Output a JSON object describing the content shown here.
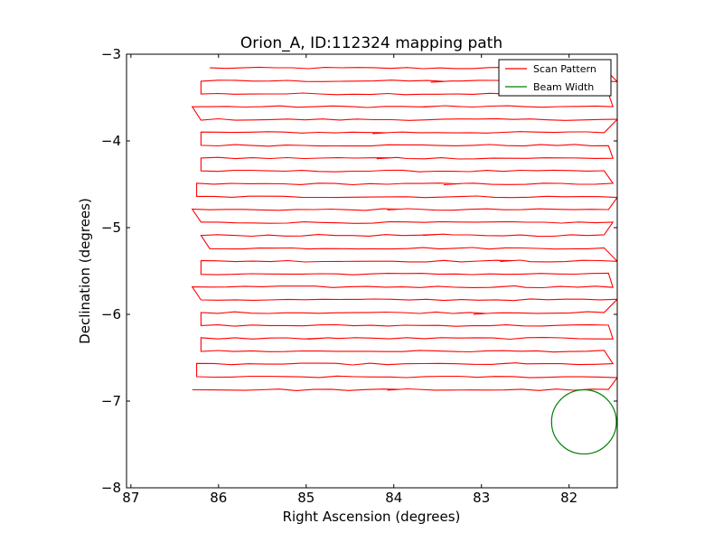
{
  "chart_data": {
    "type": "line",
    "title": "Orion_A, ID:112324 mapping path",
    "xlabel": "Right Ascension (degrees)",
    "ylabel": "Declination (degrees)",
    "xlim": [
      87.05,
      81.45
    ],
    "ylim": [
      -8,
      -3
    ],
    "xticks": [
      87,
      86,
      85,
      84,
      83,
      82
    ],
    "yticks": [
      -3,
      -4,
      -5,
      -6,
      -7,
      -8
    ],
    "xtick_labels": [
      "87",
      "86",
      "85",
      "84",
      "83",
      "82"
    ],
    "ytick_labels": [
      "−3",
      "−4",
      "−5",
      "−6",
      "−7",
      "−8"
    ],
    "grid": false,
    "legend_position": "top-right",
    "series": [
      {
        "name": "Scan Pattern",
        "color": "#ff0000",
        "type": "raster-scan",
        "dec_start": -3.16,
        "dec_step": 0.1484,
        "rows": 26,
        "ra_west_edge": [
          81.6,
          81.45,
          81.55,
          81.5,
          81.45,
          81.6,
          81.55,
          81.5,
          81.6,
          81.5,
          81.45,
          81.55,
          81.5,
          81.6
        ],
        "ra_east_edge": [
          86.1,
          86.2,
          86.2,
          86.3,
          86.2,
          86.2,
          86.2,
          86.2,
          86.2,
          86.25,
          86.25,
          86.3,
          86.2,
          86.2
        ]
      },
      {
        "name": "Beam Width",
        "color": "#008000",
        "type": "circle",
        "center": [
          81.83,
          -7.24
        ],
        "radius_deg": 0.37
      }
    ]
  }
}
